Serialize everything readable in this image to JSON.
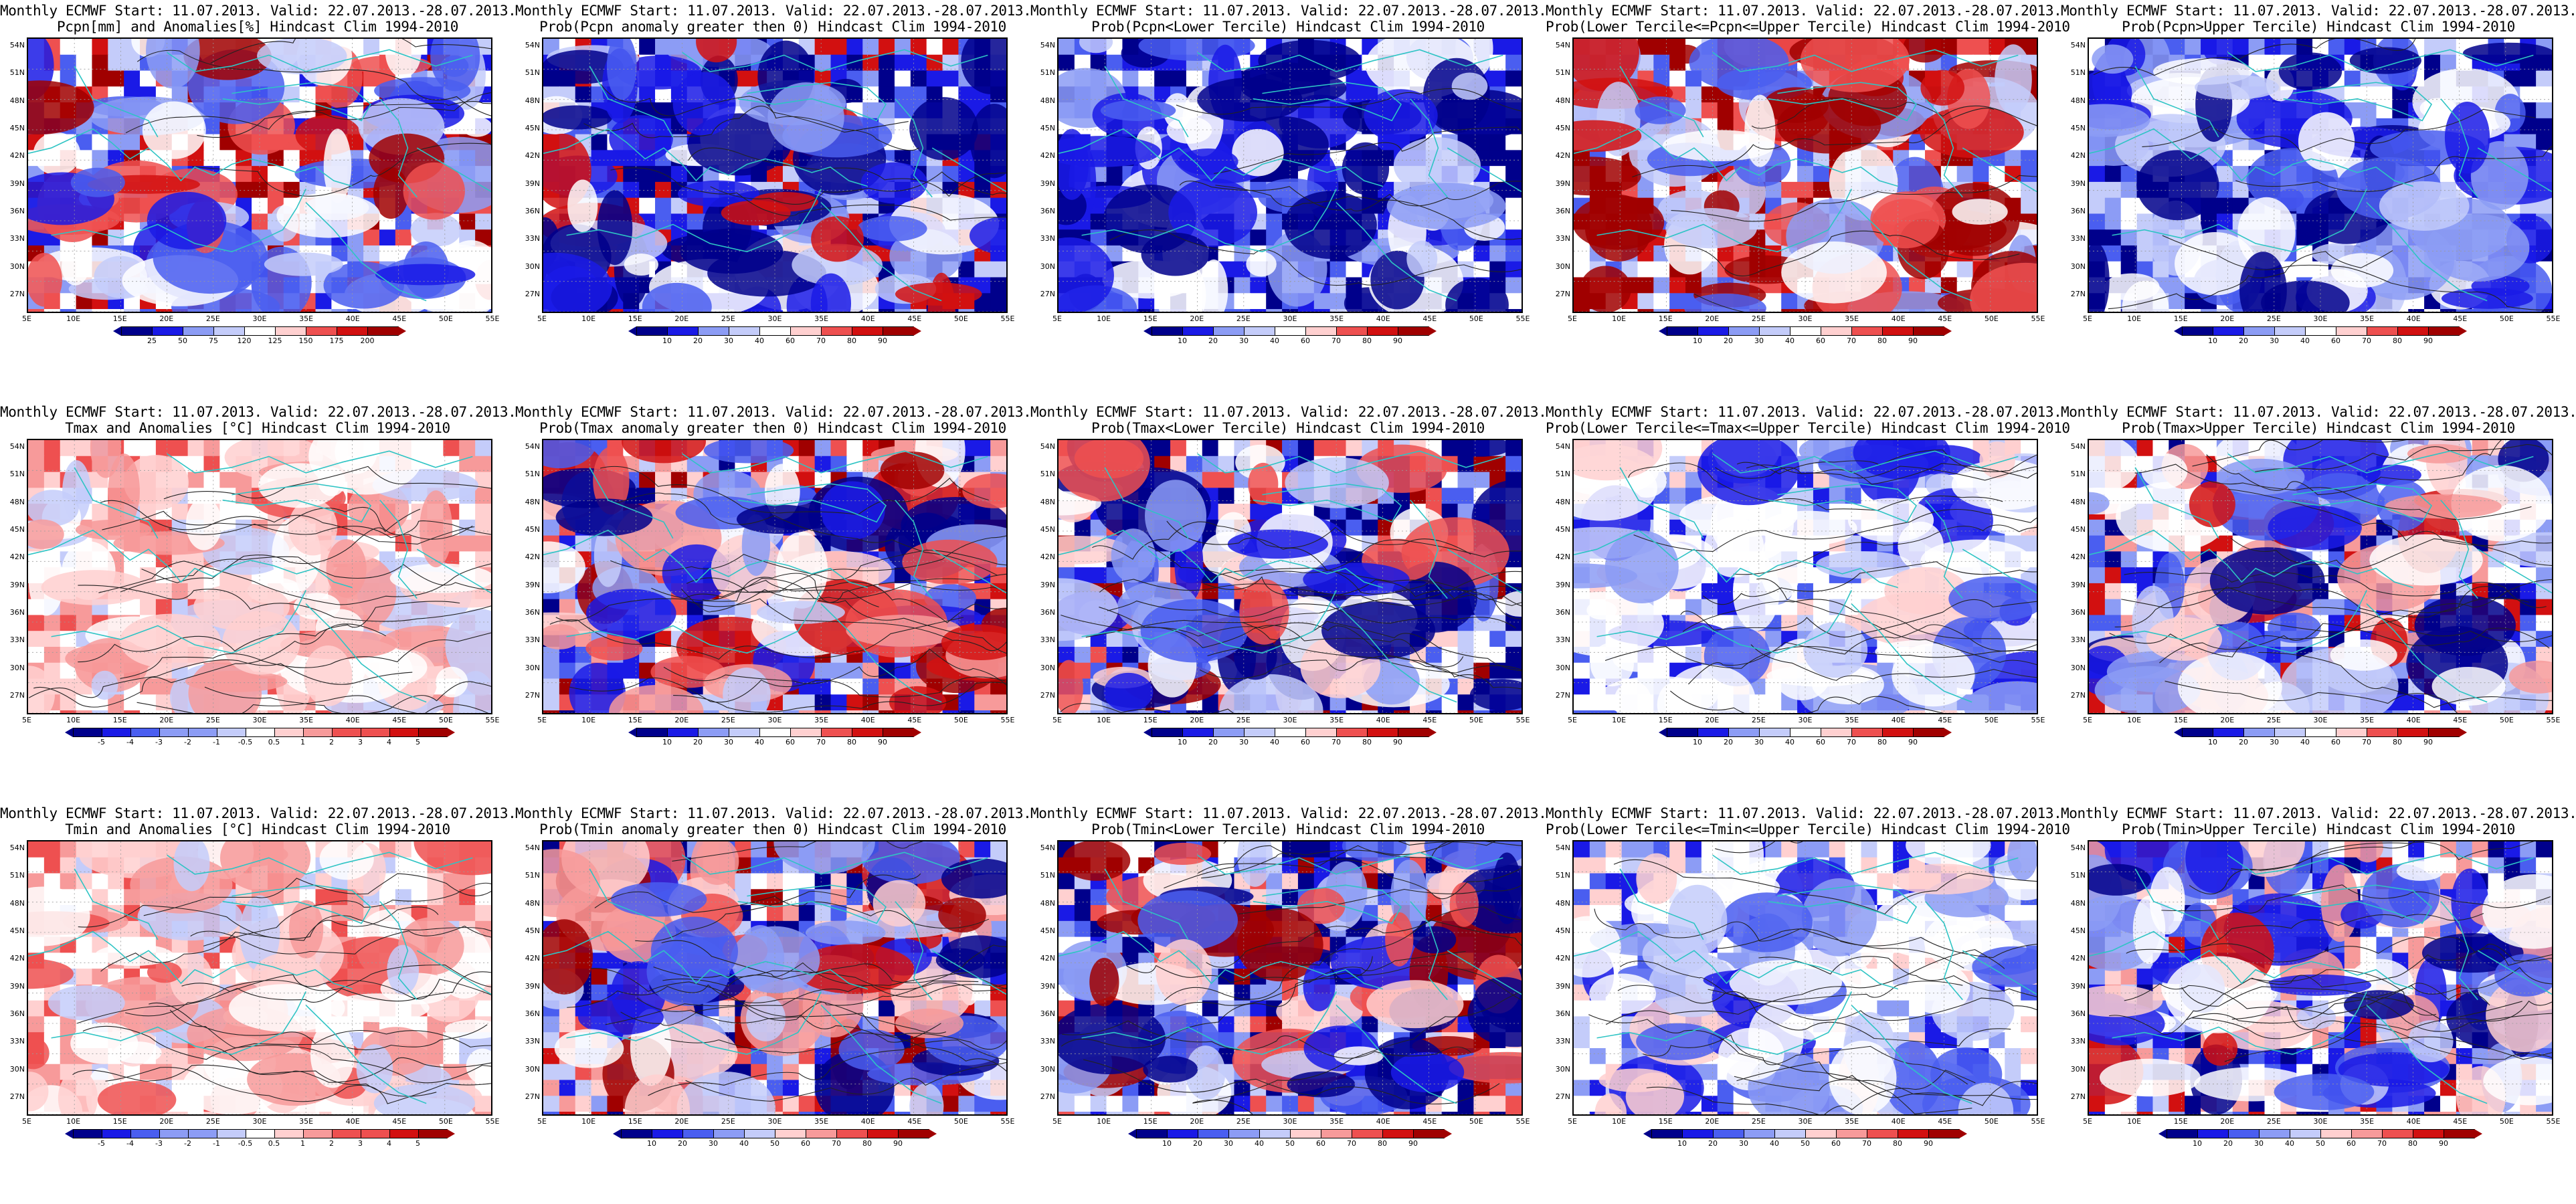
{
  "title_line1": "Monthly ECMWF Start: 11.07.2013. Valid: 22.07.2013.-28.07.2013.",
  "lat_labels": [
    "54N",
    "51N",
    "48N",
    "45N",
    "42N",
    "39N",
    "36N",
    "33N",
    "30N",
    "27N"
  ],
  "lon_labels": [
    "5E",
    "10E",
    "15E",
    "20E",
    "25E",
    "30E",
    "35E",
    "40E",
    "45E",
    "50E",
    "55E"
  ],
  "colors": {
    "coast": "#2ec4c4",
    "contour": "#222222",
    "scale": [
      "#00008b",
      "#1a1ae6",
      "#4a5ef0",
      "#8c9cf5",
      "#c4ccfa",
      "#ffffff",
      "#ffd0d0",
      "#f79a9a",
      "#ee5050",
      "#d21010",
      "#a00000"
    ]
  },
  "colorbars": {
    "pcpn_anom": [
      "25",
      "50",
      "75",
      "120",
      "125",
      "150",
      "175",
      "200"
    ],
    "temp_anom": [
      "-5",
      "-4",
      "-3",
      "-2",
      "-1",
      "-0.5",
      "0.5",
      "1",
      "2",
      "3",
      "4",
      "5"
    ],
    "prob_a": [
      "10",
      "20",
      "30",
      "40",
      "60",
      "70",
      "80",
      "90"
    ],
    "prob_b": [
      "10",
      "20",
      "30",
      "40",
      "50",
      "60",
      "70",
      "80",
      "90"
    ]
  },
  "panels": [
    {
      "id": "p11",
      "row": 0,
      "col": 0,
      "subtitle": "Pcpn[mm] and Anomalies[%] Hindcast Clim 1994-2010",
      "cb": "pcpn_anom"
    },
    {
      "id": "p12",
      "row": 0,
      "col": 1,
      "subtitle": "Prob(Pcpn anomaly greater then 0) Hindcast Clim 1994-2010",
      "cb": "prob_a"
    },
    {
      "id": "p13",
      "row": 0,
      "col": 2,
      "subtitle": "Prob(Pcpn<Lower Tercile) Hindcast Clim 1994-2010",
      "cb": "prob_a"
    },
    {
      "id": "p14",
      "row": 0,
      "col": 3,
      "subtitle": "Prob(Lower Tercile<=Pcpn<=Upper Tercile) Hindcast Clim 1994-2010",
      "cb": "prob_a"
    },
    {
      "id": "p15",
      "row": 0,
      "col": 4,
      "subtitle": "Prob(Pcpn>Upper Tercile) Hindcast Clim 1994-2010",
      "cb": "prob_a"
    },
    {
      "id": "p21",
      "row": 1,
      "col": 0,
      "subtitle": "Tmax and Anomalies [°C] Hindcast Clim 1994-2010",
      "cb": "temp_anom"
    },
    {
      "id": "p22",
      "row": 1,
      "col": 1,
      "subtitle": "Prob(Tmax anomaly greater then 0) Hindcast Clim 1994-2010",
      "cb": "prob_a"
    },
    {
      "id": "p23",
      "row": 1,
      "col": 2,
      "subtitle": "Prob(Tmax<Lower Tercile) Hindcast Clim 1994-2010",
      "cb": "prob_a"
    },
    {
      "id": "p24",
      "row": 1,
      "col": 3,
      "subtitle": "Prob(Lower Tercile<=Tmax<=Upper Tercile) Hindcast Clim 1994-2010",
      "cb": "prob_a"
    },
    {
      "id": "p25",
      "row": 1,
      "col": 4,
      "subtitle": "Prob(Tmax>Upper Tercile) Hindcast Clim 1994-2010",
      "cb": "prob_a"
    },
    {
      "id": "p31",
      "row": 2,
      "col": 0,
      "subtitle": "Tmin and Anomalies [°C] Hindcast Clim 1994-2010",
      "cb": "temp_anom"
    },
    {
      "id": "p32",
      "row": 2,
      "col": 1,
      "subtitle": "Prob(Tmin anomaly greater then 0) Hindcast Clim 1994-2010",
      "cb": "prob_b"
    },
    {
      "id": "p33",
      "row": 2,
      "col": 2,
      "subtitle": "Prob(Tmin<Lower Tercile) Hindcast Clim 1994-2010",
      "cb": "prob_b"
    },
    {
      "id": "p34",
      "row": 2,
      "col": 3,
      "subtitle": "Prob(Lower Tercile<=Tmin<=Upper Tercile) Hindcast Clim 1994-2010",
      "cb": "prob_b"
    },
    {
      "id": "p35",
      "row": 2,
      "col": 4,
      "subtitle": "Prob(Tmin>Upper Tercile) Hindcast Clim 1994-2010",
      "cb": "prob_b"
    }
  ]
}
